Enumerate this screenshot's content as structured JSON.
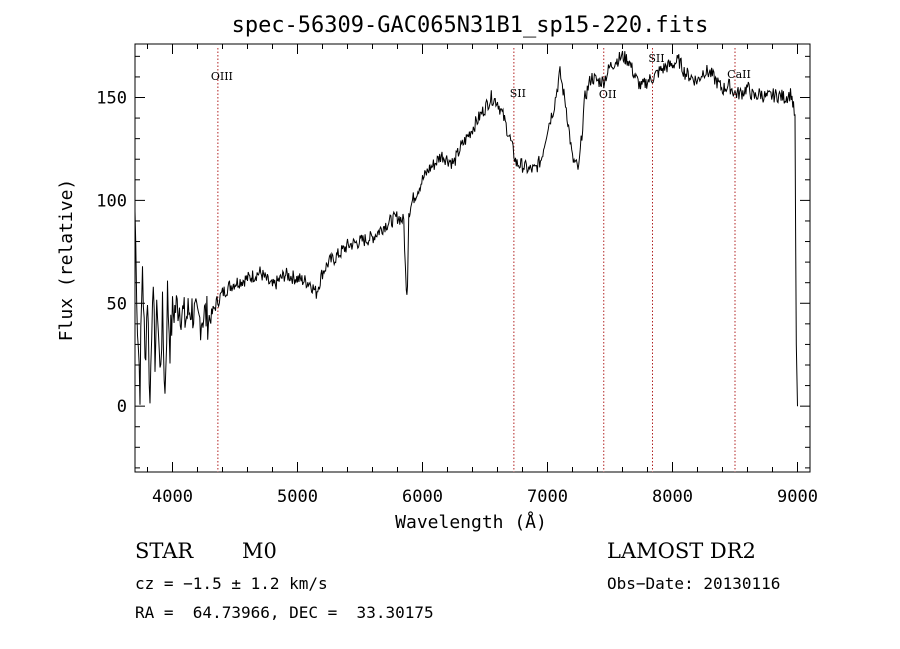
{
  "chart_data": {
    "type": "line",
    "title": "spec-56309-GAC065N31B1_sp15-220.fits",
    "xlabel": "Wavelength (Å)",
    "ylabel": "Flux (relative)",
    "xlim": [
      3700,
      9100
    ],
    "ylim": [
      -32,
      176
    ],
    "xticks": [
      4000,
      5000,
      6000,
      7000,
      8000,
      9000
    ],
    "yticks": [
      0,
      50,
      100,
      150
    ],
    "grid": false,
    "series": [
      {
        "x": [
          3700,
          3720,
          3740,
          3760,
          3780,
          3800,
          3820,
          3840,
          3860,
          3880,
          3900,
          3920,
          3940,
          3960,
          3980,
          4000,
          4050,
          4100,
          4150,
          4200,
          4250,
          4300,
          4350,
          4400,
          4450,
          4500,
          4600,
          4700,
          4800,
          4900,
          5000,
          5100,
          5150,
          5200,
          5250,
          5300,
          5400,
          5500,
          5600,
          5700,
          5800,
          5850,
          5870,
          5880,
          5890,
          5900,
          5920,
          6000,
          6050,
          6100,
          6150,
          6200,
          6250,
          6300,
          6350,
          6400,
          6450,
          6500,
          6550,
          6600,
          6650,
          6700,
          6750,
          6800,
          6850,
          6900,
          6950,
          7000,
          7050,
          7100,
          7150,
          7200,
          7250,
          7300,
          7350,
          7400,
          7450,
          7500,
          7550,
          7600,
          7650,
          7700,
          7750,
          7800,
          7850,
          7900,
          7950,
          8000,
          8050,
          8100,
          8150,
          8200,
          8250,
          8300,
          8350,
          8400,
          8450,
          8500,
          8550,
          8600,
          8650,
          8700,
          8750,
          8800,
          8850,
          8900,
          8950,
          8980,
          8990,
          9000
        ],
        "y": [
          95,
          40,
          10,
          70,
          20,
          55,
          0,
          60,
          25,
          50,
          15,
          45,
          5,
          55,
          30,
          45,
          50,
          42,
          48,
          40,
          45,
          42,
          50,
          55,
          58,
          60,
          62,
          65,
          58,
          64,
          62,
          60,
          55,
          65,
          70,
          72,
          78,
          80,
          82,
          88,
          92,
          90,
          55,
          60,
          95,
          95,
          100,
          110,
          115,
          118,
          122,
          120,
          118,
          125,
          130,
          135,
          140,
          145,
          150,
          148,
          140,
          130,
          118,
          117,
          115,
          115,
          120,
          135,
          145,
          162,
          145,
          120,
          115,
          150,
          160,
          158,
          158,
          165,
          168,
          170,
          168,
          160,
          155,
          158,
          160,
          163,
          165,
          166,
          168,
          162,
          160,
          158,
          163,
          162,
          158,
          154,
          156,
          152,
          152,
          155,
          150,
          152,
          150,
          151,
          151,
          150,
          152,
          140,
          30,
          0
        ]
      }
    ],
    "line_markers": [
      {
        "label": "OIII",
        "x": 4363
      },
      {
        "label": "SII",
        "x": 6731
      },
      {
        "label": "OII",
        "x": 7450
      },
      {
        "label": "SII",
        "x": 7840
      },
      {
        "label": "CaII",
        "x": 8500
      }
    ]
  },
  "info": {
    "object_class": "STAR",
    "subclass": "M0",
    "survey": "LAMOST DR2",
    "cz": "cz = −1.5 ± 1.2 km/s",
    "obs_date": "Obs−Date: 20130116",
    "coords": "RA =  64.73966, DEC =  33.30175"
  },
  "colors": {
    "spectrum": "#000000",
    "marker": "#b22222",
    "background": "#ffffff"
  }
}
